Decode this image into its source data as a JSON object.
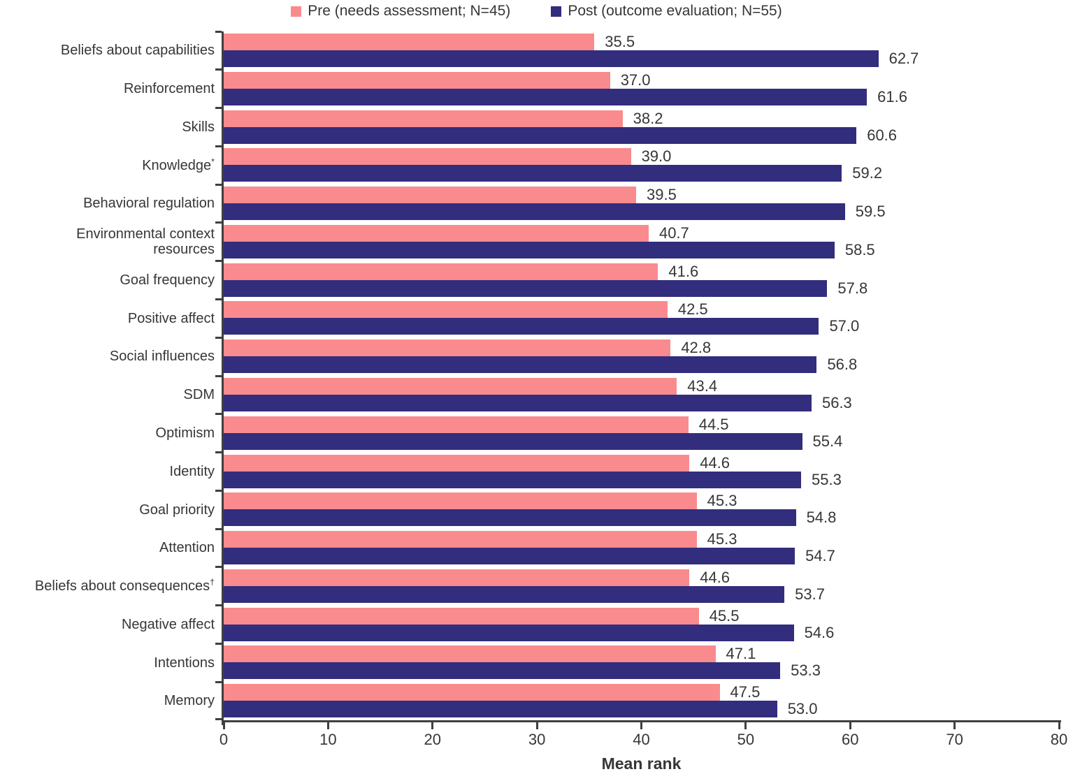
{
  "figure": {
    "background": "#ffffff",
    "text_color": "#363636",
    "axis_color": "#3f3f3f"
  },
  "chart_data": {
    "type": "bar",
    "orientation": "horizontal",
    "title": "",
    "xlabel": "Mean rank",
    "ylabel": "",
    "xlim": [
      0,
      80
    ],
    "xticks": [
      0,
      10,
      20,
      30,
      40,
      50,
      60,
      70,
      80
    ],
    "grid": false,
    "legend_position": "top-center",
    "value_labels": true,
    "categories": [
      "Beliefs about capabilities",
      "Reinforcement",
      "Skills",
      "Knowledge*",
      "Behavioral regulation",
      "Environmental context resources",
      "Goal frequency",
      "Positive affect",
      "Social influences",
      "SDM",
      "Optimism",
      "Identity",
      "Goal priority",
      "Attention",
      "Beliefs about consequences†",
      "Negative affect",
      "Intentions",
      "Memory"
    ],
    "series": [
      {
        "name": "Pre (needs assessment; N=45)",
        "color": "#F98B8E",
        "values": [
          35.5,
          37.0,
          38.2,
          39.0,
          39.5,
          40.7,
          41.6,
          42.5,
          42.8,
          43.4,
          44.5,
          44.6,
          45.3,
          45.3,
          44.6,
          45.5,
          47.1,
          47.5
        ],
        "labels": [
          "35.5",
          "37.0",
          "38.2",
          "39.0",
          "39.5",
          "40.7",
          "41.6",
          "42.5",
          "42.8",
          "43.4",
          "44.5",
          "44.6",
          "45.3",
          "45.3",
          "44.6",
          "45.5",
          "47.1",
          "47.5"
        ]
      },
      {
        "name": "Post (outcome evaluation; N=55)",
        "color": "#322D7D",
        "values": [
          62.7,
          61.6,
          60.6,
          59.2,
          59.5,
          58.5,
          57.8,
          57.0,
          56.8,
          56.3,
          55.4,
          55.3,
          54.8,
          54.7,
          53.7,
          54.6,
          53.3,
          53.0
        ],
        "labels": [
          "62.7",
          "61.6",
          "60.6",
          "59.2",
          "59.5",
          "58.5",
          "57.8",
          "57.0",
          "56.8",
          "56.3",
          "55.4",
          "55.3",
          "54.8",
          "54.7",
          "53.7",
          "54.6",
          "53.3",
          "53.0"
        ]
      }
    ]
  }
}
